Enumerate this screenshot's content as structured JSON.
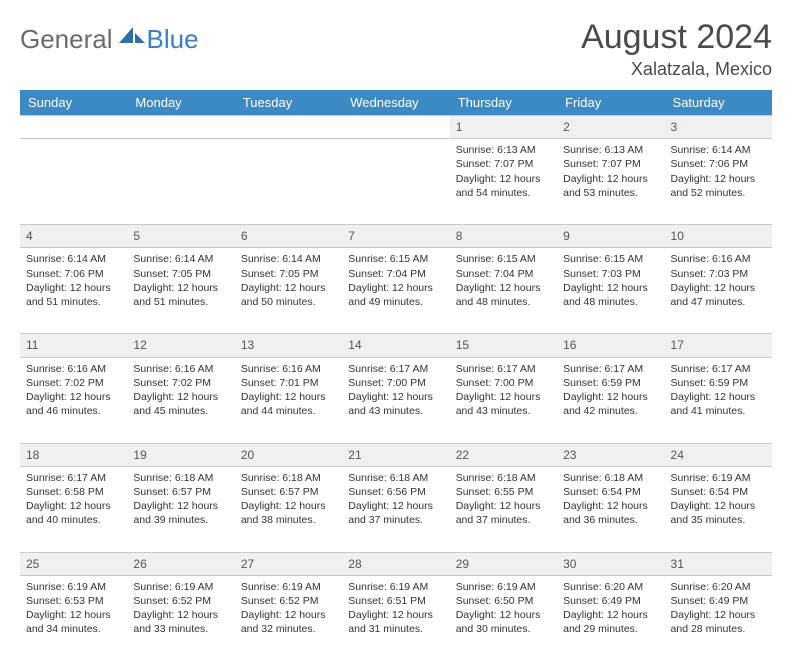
{
  "brand": {
    "part1": "General",
    "part2": "Blue"
  },
  "title": "August 2024",
  "location": "Xalatzala, Mexico",
  "colors": {
    "header_bg": "#3b8ac4",
    "daynum_bg": "#eef0f2",
    "border": "#c9c9c9",
    "title_color": "#4a4a4a",
    "logo_gray": "#6b6b6b",
    "logo_blue": "#3b7fc4"
  },
  "weekdays": [
    "Sunday",
    "Monday",
    "Tuesday",
    "Wednesday",
    "Thursday",
    "Friday",
    "Saturday"
  ],
  "weeks": [
    {
      "nums": [
        "",
        "",
        "",
        "",
        "1",
        "2",
        "3"
      ],
      "cells": [
        null,
        null,
        null,
        null,
        {
          "sunrise": "Sunrise: 6:13 AM",
          "sunset": "Sunset: 7:07 PM",
          "day1": "Daylight: 12 hours",
          "day2": "and 54 minutes."
        },
        {
          "sunrise": "Sunrise: 6:13 AM",
          "sunset": "Sunset: 7:07 PM",
          "day1": "Daylight: 12 hours",
          "day2": "and 53 minutes."
        },
        {
          "sunrise": "Sunrise: 6:14 AM",
          "sunset": "Sunset: 7:06 PM",
          "day1": "Daylight: 12 hours",
          "day2": "and 52 minutes."
        }
      ]
    },
    {
      "nums": [
        "4",
        "5",
        "6",
        "7",
        "8",
        "9",
        "10"
      ],
      "cells": [
        {
          "sunrise": "Sunrise: 6:14 AM",
          "sunset": "Sunset: 7:06 PM",
          "day1": "Daylight: 12 hours",
          "day2": "and 51 minutes."
        },
        {
          "sunrise": "Sunrise: 6:14 AM",
          "sunset": "Sunset: 7:05 PM",
          "day1": "Daylight: 12 hours",
          "day2": "and 51 minutes."
        },
        {
          "sunrise": "Sunrise: 6:14 AM",
          "sunset": "Sunset: 7:05 PM",
          "day1": "Daylight: 12 hours",
          "day2": "and 50 minutes."
        },
        {
          "sunrise": "Sunrise: 6:15 AM",
          "sunset": "Sunset: 7:04 PM",
          "day1": "Daylight: 12 hours",
          "day2": "and 49 minutes."
        },
        {
          "sunrise": "Sunrise: 6:15 AM",
          "sunset": "Sunset: 7:04 PM",
          "day1": "Daylight: 12 hours",
          "day2": "and 48 minutes."
        },
        {
          "sunrise": "Sunrise: 6:15 AM",
          "sunset": "Sunset: 7:03 PM",
          "day1": "Daylight: 12 hours",
          "day2": "and 48 minutes."
        },
        {
          "sunrise": "Sunrise: 6:16 AM",
          "sunset": "Sunset: 7:03 PM",
          "day1": "Daylight: 12 hours",
          "day2": "and 47 minutes."
        }
      ]
    },
    {
      "nums": [
        "11",
        "12",
        "13",
        "14",
        "15",
        "16",
        "17"
      ],
      "cells": [
        {
          "sunrise": "Sunrise: 6:16 AM",
          "sunset": "Sunset: 7:02 PM",
          "day1": "Daylight: 12 hours",
          "day2": "and 46 minutes."
        },
        {
          "sunrise": "Sunrise: 6:16 AM",
          "sunset": "Sunset: 7:02 PM",
          "day1": "Daylight: 12 hours",
          "day2": "and 45 minutes."
        },
        {
          "sunrise": "Sunrise: 6:16 AM",
          "sunset": "Sunset: 7:01 PM",
          "day1": "Daylight: 12 hours",
          "day2": "and 44 minutes."
        },
        {
          "sunrise": "Sunrise: 6:17 AM",
          "sunset": "Sunset: 7:00 PM",
          "day1": "Daylight: 12 hours",
          "day2": "and 43 minutes."
        },
        {
          "sunrise": "Sunrise: 6:17 AM",
          "sunset": "Sunset: 7:00 PM",
          "day1": "Daylight: 12 hours",
          "day2": "and 43 minutes."
        },
        {
          "sunrise": "Sunrise: 6:17 AM",
          "sunset": "Sunset: 6:59 PM",
          "day1": "Daylight: 12 hours",
          "day2": "and 42 minutes."
        },
        {
          "sunrise": "Sunrise: 6:17 AM",
          "sunset": "Sunset: 6:59 PM",
          "day1": "Daylight: 12 hours",
          "day2": "and 41 minutes."
        }
      ]
    },
    {
      "nums": [
        "18",
        "19",
        "20",
        "21",
        "22",
        "23",
        "24"
      ],
      "cells": [
        {
          "sunrise": "Sunrise: 6:17 AM",
          "sunset": "Sunset: 6:58 PM",
          "day1": "Daylight: 12 hours",
          "day2": "and 40 minutes."
        },
        {
          "sunrise": "Sunrise: 6:18 AM",
          "sunset": "Sunset: 6:57 PM",
          "day1": "Daylight: 12 hours",
          "day2": "and 39 minutes."
        },
        {
          "sunrise": "Sunrise: 6:18 AM",
          "sunset": "Sunset: 6:57 PM",
          "day1": "Daylight: 12 hours",
          "day2": "and 38 minutes."
        },
        {
          "sunrise": "Sunrise: 6:18 AM",
          "sunset": "Sunset: 6:56 PM",
          "day1": "Daylight: 12 hours",
          "day2": "and 37 minutes."
        },
        {
          "sunrise": "Sunrise: 6:18 AM",
          "sunset": "Sunset: 6:55 PM",
          "day1": "Daylight: 12 hours",
          "day2": "and 37 minutes."
        },
        {
          "sunrise": "Sunrise: 6:18 AM",
          "sunset": "Sunset: 6:54 PM",
          "day1": "Daylight: 12 hours",
          "day2": "and 36 minutes."
        },
        {
          "sunrise": "Sunrise: 6:19 AM",
          "sunset": "Sunset: 6:54 PM",
          "day1": "Daylight: 12 hours",
          "day2": "and 35 minutes."
        }
      ]
    },
    {
      "nums": [
        "25",
        "26",
        "27",
        "28",
        "29",
        "30",
        "31"
      ],
      "cells": [
        {
          "sunrise": "Sunrise: 6:19 AM",
          "sunset": "Sunset: 6:53 PM",
          "day1": "Daylight: 12 hours",
          "day2": "and 34 minutes."
        },
        {
          "sunrise": "Sunrise: 6:19 AM",
          "sunset": "Sunset: 6:52 PM",
          "day1": "Daylight: 12 hours",
          "day2": "and 33 minutes."
        },
        {
          "sunrise": "Sunrise: 6:19 AM",
          "sunset": "Sunset: 6:52 PM",
          "day1": "Daylight: 12 hours",
          "day2": "and 32 minutes."
        },
        {
          "sunrise": "Sunrise: 6:19 AM",
          "sunset": "Sunset: 6:51 PM",
          "day1": "Daylight: 12 hours",
          "day2": "and 31 minutes."
        },
        {
          "sunrise": "Sunrise: 6:19 AM",
          "sunset": "Sunset: 6:50 PM",
          "day1": "Daylight: 12 hours",
          "day2": "and 30 minutes."
        },
        {
          "sunrise": "Sunrise: 6:20 AM",
          "sunset": "Sunset: 6:49 PM",
          "day1": "Daylight: 12 hours",
          "day2": "and 29 minutes."
        },
        {
          "sunrise": "Sunrise: 6:20 AM",
          "sunset": "Sunset: 6:49 PM",
          "day1": "Daylight: 12 hours",
          "day2": "and 28 minutes."
        }
      ]
    }
  ]
}
